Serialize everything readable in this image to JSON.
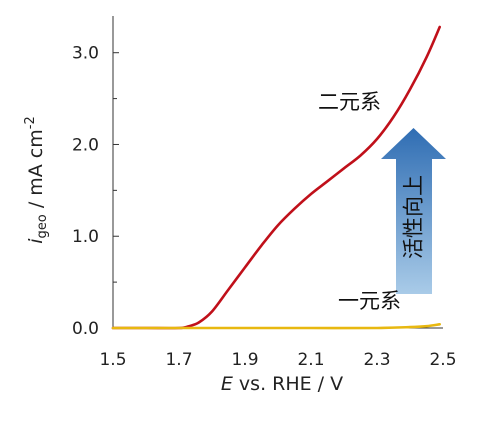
{
  "chart_data": {
    "type": "line",
    "xlabel_main": "E",
    "xlabel_rest": " vs. RHE / V",
    "ylabel_main": "i",
    "ylabel_sub": "geo",
    "ylabel_rest": " / mA cm",
    "ylabel_sup": "-2",
    "xlim": [
      1.5,
      2.5
    ],
    "ylim": [
      0.0,
      3.4
    ],
    "x_tick_values": [
      1.5,
      1.7,
      1.9,
      2.1,
      2.3,
      2.5
    ],
    "x_tick_labels": [
      "1.5",
      "1.7",
      "1.9",
      "2.1",
      "2.3",
      "2.5"
    ],
    "y_tick_values": [
      0.0,
      1.0,
      2.0,
      3.0
    ],
    "y_tick_labels": [
      "0.0",
      "1.0",
      "2.0",
      "3.0"
    ],
    "y_minor_ticks": [
      0.5,
      1.5,
      2.5
    ],
    "grid": false,
    "series": [
      {
        "name": "二元系",
        "color": "#c0101a",
        "x": [
          1.5,
          1.6,
          1.7,
          1.73,
          1.76,
          1.8,
          1.85,
          1.9,
          1.95,
          2.0,
          2.05,
          2.1,
          2.15,
          2.2,
          2.25,
          2.3,
          2.35,
          2.4,
          2.45,
          2.49
        ],
        "y": [
          0.0,
          0.0,
          0.0,
          0.02,
          0.06,
          0.18,
          0.42,
          0.66,
          0.9,
          1.12,
          1.3,
          1.46,
          1.6,
          1.74,
          1.88,
          2.06,
          2.3,
          2.6,
          2.95,
          3.28
        ]
      },
      {
        "name": "一元系",
        "color": "#e8b810",
        "x": [
          1.5,
          1.7,
          1.9,
          2.1,
          2.3,
          2.4,
          2.45,
          2.49
        ],
        "y": [
          0.0,
          0.0,
          0.0,
          0.0,
          0.0,
          0.01,
          0.02,
          0.04
        ]
      }
    ],
    "annotations": {
      "binary": "二元系",
      "unary": "一元系",
      "improvement": "活性向上"
    },
    "arrow_colors": [
      "#a9cbe8",
      "#2f6db3"
    ]
  }
}
